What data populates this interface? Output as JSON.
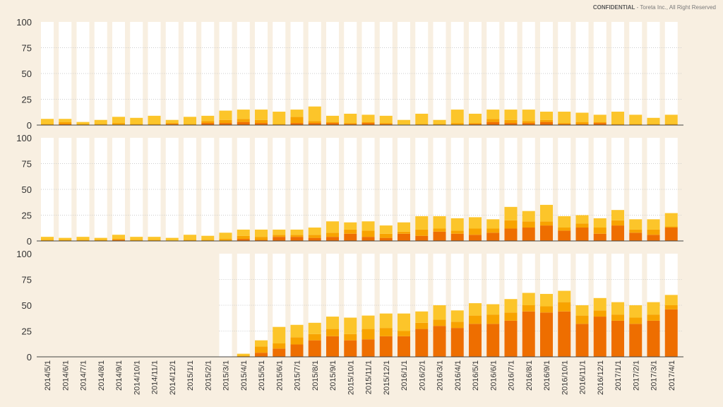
{
  "header": {
    "confidential_label": "CONFIDENTIAL",
    "copyright": "- Toreta Inc., All Right Reserved"
  },
  "colors": {
    "background": "#f8efe1",
    "bar_empty": "#ffffff",
    "dark_orange": "#ee6e00",
    "orange": "#f8a300",
    "yellow": "#fcc52a",
    "grid": "#cccccc"
  },
  "chart_data": {
    "type": "bar",
    "stacked": true,
    "categories": [
      "2014/5/1",
      "2014/6/1",
      "2014/7/1",
      "2014/8/1",
      "2014/9/1",
      "2014/10/1",
      "2014/11/1",
      "2014/12/1",
      "2015/1/1",
      "2015/2/1",
      "2015/3/1",
      "2015/4/1",
      "2015/5/1",
      "2015/6/1",
      "2015/7/1",
      "2015/8/1",
      "2015/9/1",
      "2015/10/1",
      "2015/11/1",
      "2015/12/1",
      "2016/1/1",
      "2016/2/1",
      "2016/3/1",
      "2016/4/1",
      "2016/5/1",
      "2016/6/1",
      "2016/7/1",
      "2016/8/1",
      "2016/9/1",
      "2016/10/1",
      "2016/11/1",
      "2016/12/1",
      "2017/1/1",
      "2017/2/1",
      "2017/3/1",
      "2017/4/1"
    ],
    "ylim": [
      0,
      100
    ],
    "yticks": [
      "0",
      "25",
      "50",
      "75",
      "100"
    ],
    "panels": [
      {
        "bar_start_index": 0,
        "series": [
          {
            "name": "dark",
            "values": [
              0,
              1,
              0,
              0,
              0,
              0,
              0,
              1,
              0,
              2,
              2,
              3,
              2,
              0,
              2,
              2,
              2,
              1,
              2,
              1,
              0,
              0,
              0,
              0,
              1,
              3,
              2,
              2,
              3,
              1,
              1,
              2,
              0,
              0,
              0,
              0
            ]
          },
          {
            "name": "mid",
            "values": [
              1,
              2,
              1,
              1,
              2,
              1,
              1,
              1,
              1,
              2,
              3,
              3,
              3,
              1,
              6,
              2,
              1,
              1,
              1,
              1,
              0,
              1,
              1,
              2,
              1,
              3,
              3,
              2,
              2,
              1,
              2,
              1,
              1,
              1,
              1,
              1
            ]
          },
          {
            "name": "light",
            "values": [
              5,
              3,
              2,
              4,
              6,
              6,
              8,
              3,
              7,
              5,
              9,
              9,
              10,
              12,
              7,
              14,
              6,
              9,
              7,
              7,
              5,
              10,
              4,
              13,
              9,
              9,
              10,
              11,
              8,
              11,
              9,
              7,
              12,
              9,
              6,
              9
            ]
          }
        ]
      },
      {
        "bar_start_index": 0,
        "series": [
          {
            "name": "dark",
            "values": [
              0,
              0,
              0,
              0,
              1,
              0,
              0,
              0,
              0,
              0,
              0,
              2,
              1,
              4,
              4,
              3,
              4,
              7,
              4,
              3,
              7,
              5,
              9,
              7,
              6,
              8,
              12,
              13,
              15,
              10,
              13,
              7,
              15,
              8,
              6,
              13
            ]
          },
          {
            "name": "mid",
            "values": [
              1,
              1,
              1,
              1,
              1,
              1,
              1,
              0,
              1,
              1,
              2,
              3,
              3,
              2,
              2,
              3,
              4,
              4,
              6,
              4,
              2,
              6,
              3,
              3,
              6,
              4,
              8,
              6,
              4,
              3,
              4,
              6,
              5,
              3,
              5,
              1
            ]
          },
          {
            "name": "light",
            "values": [
              3,
              2,
              3,
              2,
              4,
              3,
              3,
              3,
              5,
              4,
              6,
              6,
              7,
              5,
              5,
              7,
              11,
              7,
              9,
              8,
              9,
              13,
              12,
              12,
              11,
              9,
              13,
              10,
              16,
              11,
              8,
              9,
              10,
              10,
              10,
              13
            ]
          }
        ]
      },
      {
        "bar_start_index": 10,
        "series": [
          {
            "name": "dark",
            "values": [
              0,
              0,
              4,
              8,
              12,
              16,
              20,
              16,
              17,
              20,
              20,
              27,
              30,
              28,
              32,
              32,
              35,
              44,
              43,
              44,
              32,
              39,
              35,
              32,
              35,
              46
            ]
          },
          {
            "name": "mid",
            "values": [
              0,
              1,
              6,
              5,
              7,
              6,
              7,
              6,
              10,
              8,
              5,
              6,
              6,
              6,
              8,
              9,
              8,
              6,
              6,
              9,
              8,
              6,
              6,
              6,
              6,
              4
            ]
          },
          {
            "name": "light",
            "values": [
              0,
              2,
              6,
              16,
              12,
              11,
              12,
              16,
              13,
              14,
              17,
              11,
              14,
              11,
              12,
              10,
              13,
              12,
              12,
              11,
              10,
              12,
              12,
              12,
              12,
              10
            ]
          }
        ]
      }
    ]
  }
}
